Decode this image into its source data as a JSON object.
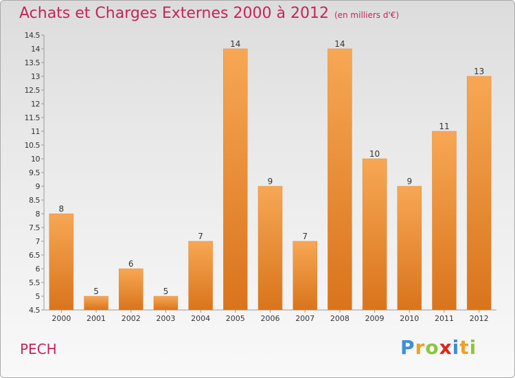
{
  "header": {
    "title": "Achats et Charges Externes 2000 à 2012",
    "unit": "(en milliers d'€)"
  },
  "footer": {
    "city": "PECH",
    "logo": [
      {
        "ch": "P",
        "color": "#3d8fd6"
      },
      {
        "ch": "r",
        "color": "#f0a020"
      },
      {
        "ch": "o",
        "color": "#8cc63f"
      },
      {
        "ch": "x",
        "color": "#e2231a"
      },
      {
        "ch": "i",
        "color": "#3d8fd6"
      },
      {
        "ch": "t",
        "color": "#f0a020"
      },
      {
        "ch": "i",
        "color": "#8cc63f"
      }
    ]
  },
  "colors": {
    "title": "#c4245c",
    "bar_top": "#f7a754",
    "bar_bottom": "#d9741c",
    "bar_edge": "#e08a35"
  },
  "chart_data": {
    "type": "bar",
    "title": "Achats et Charges Externes 2000 à 2012",
    "subtitle": "(en milliers d'€)",
    "categories": [
      "2000",
      "2001",
      "2002",
      "2003",
      "2004",
      "2005",
      "2006",
      "2007",
      "2008",
      "2009",
      "2010",
      "2011",
      "2012"
    ],
    "values": [
      8,
      5,
      6,
      5,
      7,
      14,
      9,
      7,
      14,
      10,
      9,
      11,
      13
    ],
    "ylim": [
      4.5,
      14.5
    ],
    "yticks": [
      "4.5",
      "5",
      "5.5",
      "6",
      "6.5",
      "7",
      "7.5",
      "8",
      "8.5",
      "9",
      "9.5",
      "10",
      "10.5",
      "11",
      "11.5",
      "12",
      "12.5",
      "13",
      "13.5",
      "14",
      "14.5"
    ],
    "grid": false,
    "legend": "none"
  }
}
